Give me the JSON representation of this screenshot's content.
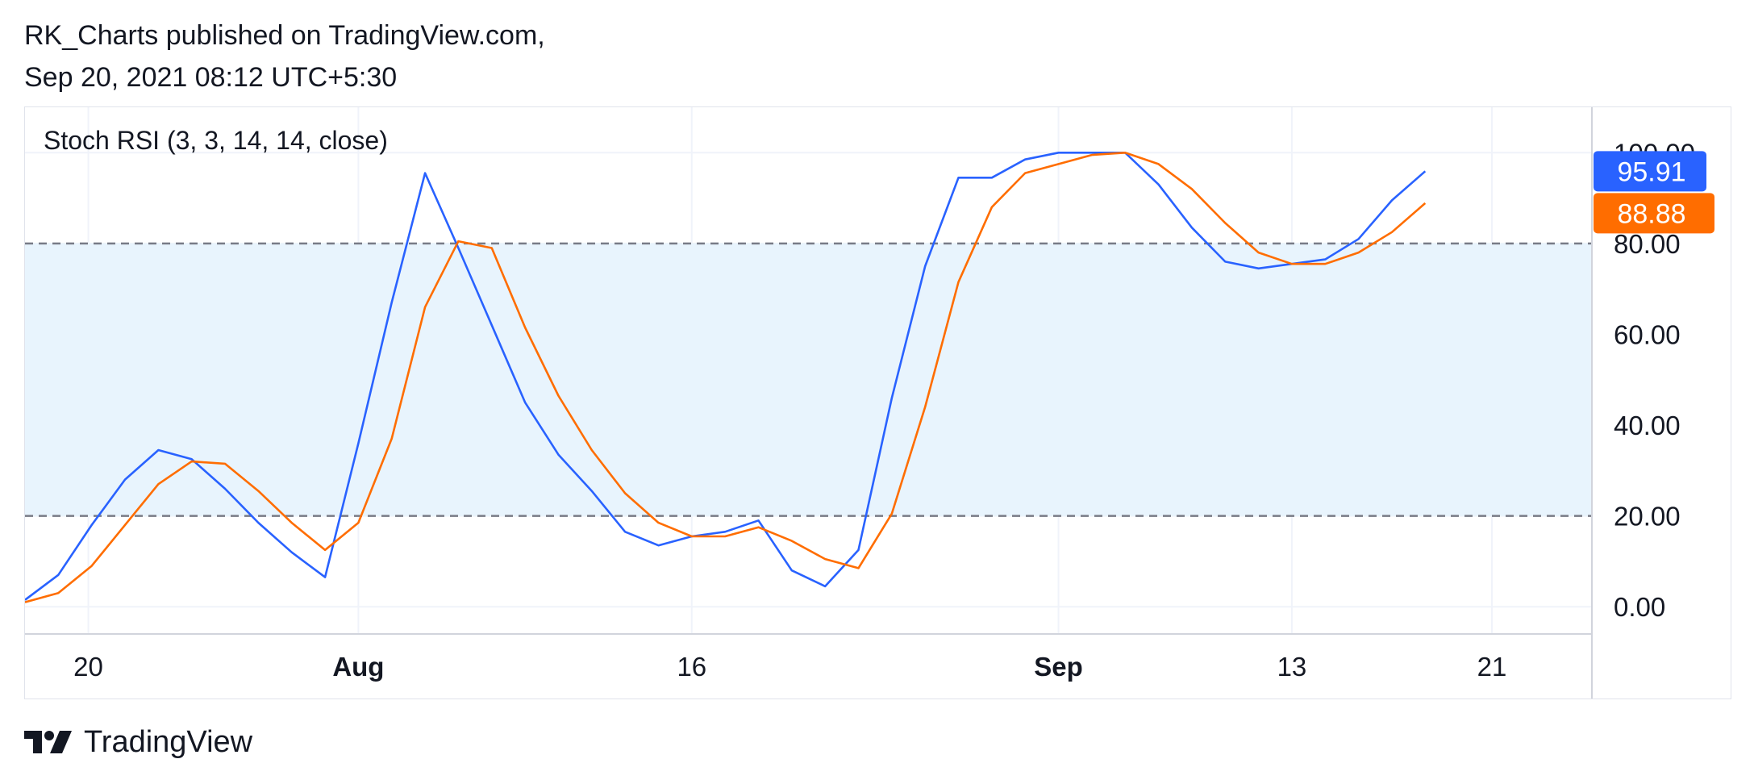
{
  "header": {
    "line1": "RK_Charts published on TradingView.com,",
    "line2": "Sep 20, 2021 08:12 UTC+5:30"
  },
  "footer": {
    "brand": "TradingView",
    "logo_icon": "tradingview-logo-icon"
  },
  "chart_data": {
    "type": "line",
    "title": "Stoch RSI (3, 3, 14, 14, close)",
    "ylim": [
      -6,
      110
    ],
    "y_ticks": [
      "0.00",
      "20.00",
      "40.00",
      "60.00",
      "80.00",
      "100.00"
    ],
    "y_tick_values": [
      0,
      20,
      40,
      60,
      80,
      100
    ],
    "bands": {
      "upper": 80,
      "lower": 20,
      "fill": "#e8f4fd",
      "line_color": "#787b86"
    },
    "x_ticks": [
      {
        "label": "20",
        "index": 1.9,
        "bold": false
      },
      {
        "label": "Aug",
        "index": 10,
        "bold": true
      },
      {
        "label": "16",
        "index": 20,
        "bold": false
      },
      {
        "label": "Sep",
        "index": 31,
        "bold": true
      },
      {
        "label": "13",
        "index": 38,
        "bold": false
      },
      {
        "label": "21",
        "index": 44,
        "bold": false
      }
    ],
    "x_range": [
      0,
      47.0
    ],
    "grid": true,
    "series": [
      {
        "color": "#2962ff",
        "last_value_label": "95.91",
        "values": [
          1.5,
          7,
          18,
          28,
          34.5,
          32.5,
          26,
          18.5,
          12,
          6.5,
          36,
          67,
          95.5,
          79,
          62,
          45,
          33.5,
          25.5,
          16.5,
          13.5,
          15.5,
          16.5,
          19,
          8,
          4.5,
          12.5,
          46,
          75,
          94.5,
          94.5,
          98.5,
          100,
          100,
          100,
          93,
          83.5,
          76,
          74.5,
          75.5,
          76.5,
          81,
          89.5,
          95.91
        ]
      },
      {
        "color": "#ff6d00",
        "last_value_label": "88.88",
        "values": [
          1,
          3,
          9,
          18,
          27,
          32,
          31.5,
          25.5,
          18.5,
          12.5,
          18.5,
          37,
          66,
          80.5,
          79,
          61.5,
          46.5,
          34.5,
          25,
          18.5,
          15.5,
          15.5,
          17.5,
          14.5,
          10.5,
          8.5,
          20.5,
          44,
          71.5,
          88,
          95.5,
          97.5,
          99.5,
          100,
          97.5,
          92,
          84.5,
          78,
          75.5,
          75.5,
          78,
          82.5,
          88.88
        ]
      }
    ]
  }
}
